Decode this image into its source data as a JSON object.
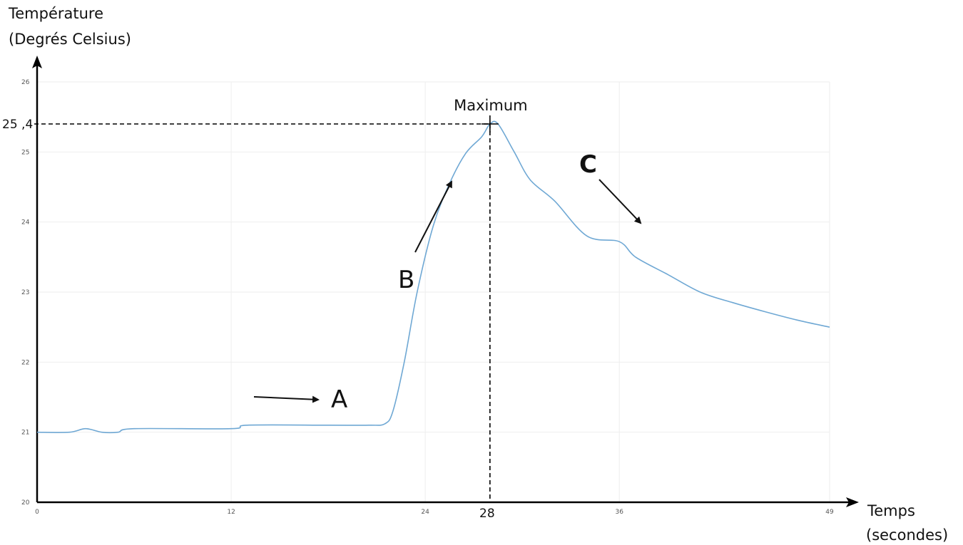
{
  "chart_data": {
    "type": "line",
    "ylabel_line1": "Température",
    "ylabel_line2": "(Degrés Celsius)",
    "xlabel_line1": "Temps",
    "xlabel_line2": "(secondes)",
    "xlim": [
      0,
      49
    ],
    "ylim": [
      20,
      26
    ],
    "x_ticks": [
      0,
      12,
      24,
      36,
      49
    ],
    "y_ticks": [
      20,
      21,
      22,
      23,
      24,
      25,
      26
    ],
    "x_tick_labels": [
      "0",
      "12",
      "24",
      "36",
      "49"
    ],
    "y_tick_labels": [
      "20",
      "21",
      "22",
      "23",
      "24",
      "25",
      "26"
    ],
    "grid": true,
    "line_color": "#6fa8d4",
    "series": [
      {
        "x": [
          0,
          2,
          3,
          4,
          5,
          6,
          12,
          13,
          18,
          20.5,
          21.5,
          22,
          22.7,
          23.5,
          24.5,
          25.5,
          26.5,
          27.5,
          28,
          28.5,
          29.5,
          30.5,
          32,
          34,
          36,
          37,
          39,
          41,
          43,
          45,
          47,
          49
        ],
        "y": [
          21.0,
          21.0,
          21.05,
          21.0,
          21.0,
          21.05,
          21.05,
          21.1,
          21.1,
          21.1,
          21.12,
          21.3,
          22.0,
          23.0,
          23.95,
          24.55,
          24.98,
          25.22,
          25.4,
          25.4,
          25.0,
          24.6,
          24.3,
          23.8,
          23.72,
          23.5,
          23.25,
          23.0,
          22.85,
          22.72,
          22.6,
          22.5
        ]
      }
    ],
    "annotations": {
      "max_label": "Maximum",
      "max_x": 28,
      "max_y": 25.4,
      "max_y_label": "25 ,4",
      "max_x_label": "28",
      "letter_a": "A",
      "letter_b": "B",
      "letter_c": "C"
    }
  }
}
